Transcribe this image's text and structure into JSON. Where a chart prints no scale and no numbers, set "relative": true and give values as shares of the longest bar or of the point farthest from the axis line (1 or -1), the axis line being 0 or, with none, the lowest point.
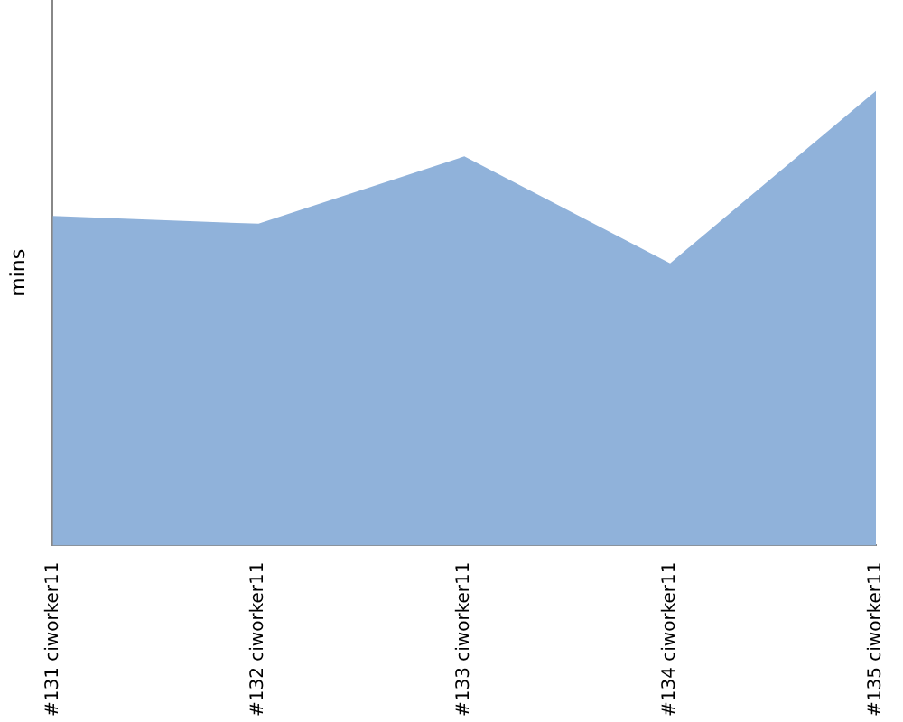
{
  "chart_data": {
    "type": "area",
    "ylabel": "mins",
    "relative": true,
    "categories": [
      "#131 ciworker11",
      "#132 ciworker11",
      "#133 ciworker11",
      "#134 ciworker11",
      "#135 ciworker11"
    ],
    "series": [
      {
        "color": "#90b2da",
        "values": [
          0.725,
          0.708,
          0.856,
          0.621,
          1
        ]
      }
    ],
    "grid": false,
    "legend": false
  }
}
